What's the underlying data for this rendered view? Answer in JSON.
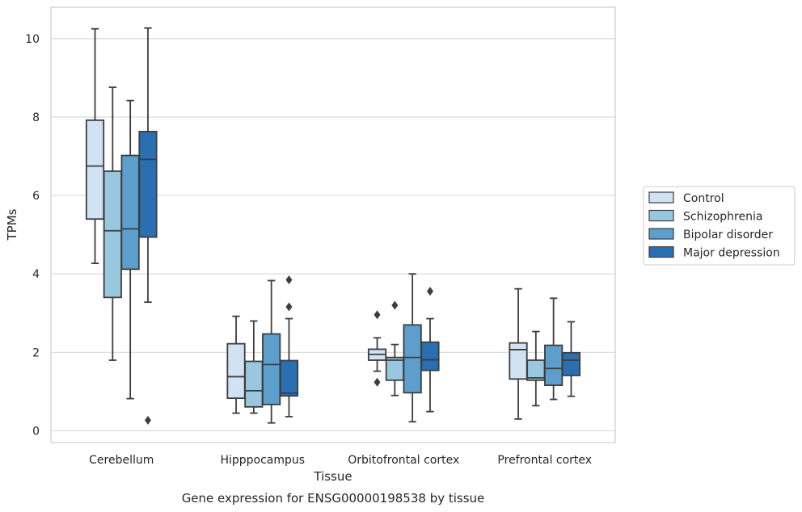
{
  "chart_data": {
    "type": "boxplot",
    "xlabel": "Tissue",
    "ylabel": "TPMs",
    "caption": "Gene expression for ENSG00000198538 by tissue",
    "ylim": [
      -0.3,
      10.8
    ],
    "yticks": [
      "0",
      "2",
      "4",
      "6",
      "8",
      "10"
    ],
    "ytick_values": [
      0,
      2,
      4,
      6,
      8,
      10
    ],
    "grid": true,
    "legend_position": "right",
    "categories": [
      "Cerebellum",
      "Hipppocampus",
      "Orbitofrontal cortex",
      "Prefrontal cortex"
    ],
    "series": [
      {
        "name": "Control",
        "color": "#d1e2f2",
        "boxes": [
          {
            "whislo": 4.27,
            "q1": 5.4,
            "med": 6.75,
            "q3": 7.92,
            "whishi": 10.25,
            "fliers": []
          },
          {
            "whislo": 0.45,
            "q1": 0.83,
            "med": 1.38,
            "q3": 2.22,
            "whishi": 2.92,
            "fliers": []
          },
          {
            "whislo": 1.52,
            "q1": 1.8,
            "med": 1.95,
            "q3": 2.08,
            "whishi": 2.37,
            "fliers": [
              2.96,
              1.24
            ]
          },
          {
            "whislo": 0.3,
            "q1": 1.32,
            "med": 2.07,
            "q3": 2.24,
            "whishi": 3.62,
            "fliers": []
          }
        ]
      },
      {
        "name": "Schizophrenia",
        "color": "#9ac7e0",
        "boxes": [
          {
            "whislo": 1.8,
            "q1": 3.4,
            "med": 5.1,
            "q3": 6.62,
            "whishi": 8.76,
            "fliers": []
          },
          {
            "whislo": 0.45,
            "q1": 0.61,
            "med": 1.02,
            "q3": 1.77,
            "whishi": 2.8,
            "fliers": []
          },
          {
            "whislo": 0.9,
            "q1": 1.29,
            "med": 1.8,
            "q3": 1.87,
            "whishi": 2.2,
            "fliers": [
              3.2
            ]
          },
          {
            "whislo": 0.64,
            "q1": 1.29,
            "med": 1.35,
            "q3": 1.8,
            "whishi": 2.53,
            "fliers": []
          }
        ]
      },
      {
        "name": "Bipolar disorder",
        "color": "#5c9fcd",
        "boxes": [
          {
            "whislo": 0.82,
            "q1": 4.12,
            "med": 5.15,
            "q3": 7.02,
            "whishi": 8.42,
            "fliers": []
          },
          {
            "whislo": 0.2,
            "q1": 0.67,
            "med": 1.69,
            "q3": 2.47,
            "whishi": 3.83,
            "fliers": []
          },
          {
            "whislo": 0.23,
            "q1": 0.97,
            "med": 1.87,
            "q3": 2.7,
            "whishi": 4.0,
            "fliers": []
          },
          {
            "whislo": 0.8,
            "q1": 1.16,
            "med": 1.59,
            "q3": 2.18,
            "whishi": 3.38,
            "fliers": []
          }
        ]
      },
      {
        "name": "Major depression",
        "color": "#2a6fb1",
        "boxes": [
          {
            "whislo": 3.28,
            "q1": 4.94,
            "med": 6.92,
            "q3": 7.63,
            "whishi": 10.27,
            "fliers": [
              0.27
            ]
          },
          {
            "whislo": 0.36,
            "q1": 0.89,
            "med": 0.96,
            "q3": 1.79,
            "whishi": 2.86,
            "fliers": [
              3.85,
              3.16
            ]
          },
          {
            "whislo": 0.49,
            "q1": 1.54,
            "med": 1.81,
            "q3": 2.26,
            "whishi": 2.86,
            "fliers": [
              3.56
            ]
          },
          {
            "whislo": 0.88,
            "q1": 1.41,
            "med": 1.8,
            "q3": 1.99,
            "whishi": 2.78,
            "fliers": []
          }
        ]
      }
    ]
  }
}
